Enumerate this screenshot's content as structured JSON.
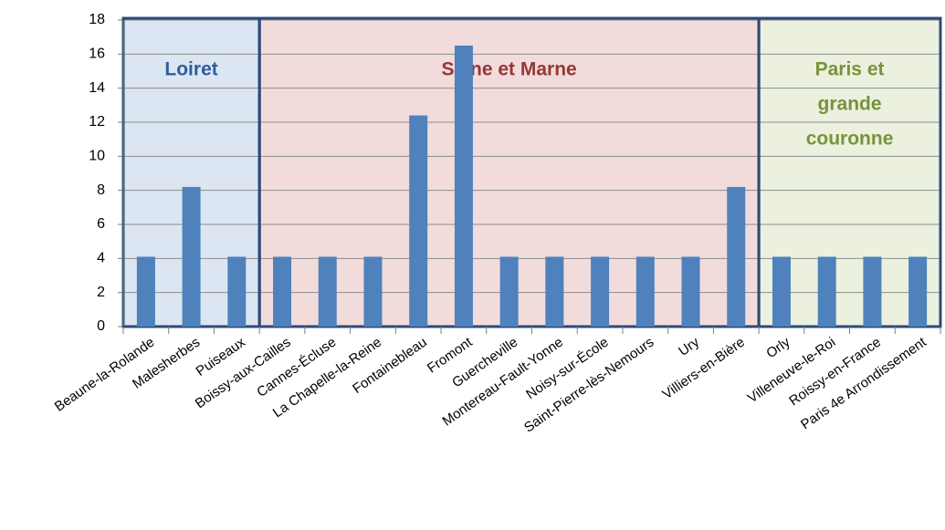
{
  "chart_data": {
    "type": "bar",
    "bar_color": "#4f81bd",
    "grid": true,
    "ylim": [
      0,
      18
    ],
    "yticks": [
      0,
      2,
      4,
      6,
      8,
      10,
      12,
      14,
      16,
      18
    ],
    "groups": [
      {
        "label": [
          "Loiret"
        ],
        "background": "#dce6f2",
        "label_color": "#2e5d9f",
        "categories": [
          "Beaune-la-Rolande",
          "Malesherbes",
          "Puiseaux"
        ],
        "values": [
          4.1,
          8.2,
          4.1
        ]
      },
      {
        "label": [
          "Seine et Marne"
        ],
        "background": "#f2dcdb",
        "label_color": "#953735",
        "categories": [
          "Boissy-aux-Cailles",
          "Cannes-Écluse",
          "La Chapelle-la-Reine",
          "Fontainebleau",
          "Fromont",
          "Guercheville",
          "Montereau-Fault-Yonne",
          "Noisy-sur-École",
          "Saint-Pierre-lès-Nemours",
          "Ury",
          "Villiers-en-Bière"
        ],
        "values": [
          4.1,
          4.1,
          4.1,
          12.4,
          16.5,
          4.1,
          4.1,
          4.1,
          4.1,
          4.1,
          8.2
        ]
      },
      {
        "label": [
          "Paris et",
          "grande",
          "couronne"
        ],
        "background": "#ebf1de",
        "label_color": "#77933c",
        "categories": [
          "Orly",
          "Villeneuve-le-Roi",
          "Roissy-en-France",
          "Paris 4e Arrondissement"
        ],
        "values": [
          4.1,
          4.1,
          4.1,
          4.1
        ]
      }
    ]
  }
}
